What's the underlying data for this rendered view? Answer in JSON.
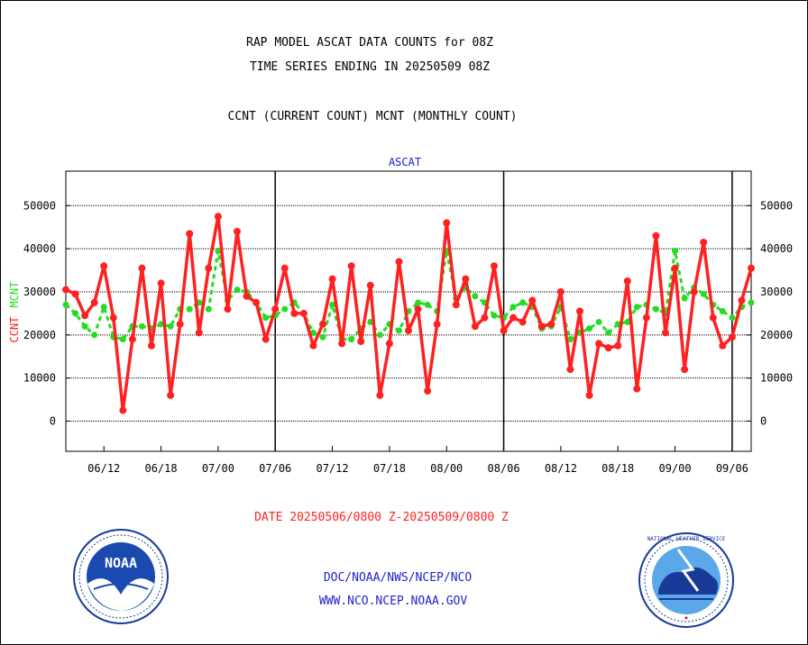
{
  "header": {
    "title_line1": "RAP MODEL ASCAT DATA COUNTS for 08Z",
    "title_line2": "TIME SERIES ENDING IN 20250509 08Z",
    "legend_line": "CCNT (CURRENT COUNT) MCNT (MONTHLY COUNT)"
  },
  "footer": {
    "date_range": "DATE 20250506/0800 Z-20250509/0800 Z",
    "org_line": "DOC/NOAA/NWS/NCEP/NCO",
    "url_line": "WWW.NCO.NCEP.NOAA.GOV"
  },
  "logos": {
    "noaa_text": "NOAA",
    "nws_text": "NATIONAL WEATHER SERVICE"
  },
  "colors": {
    "ccnt": "#ff2020",
    "mcnt": "#22dd22",
    "plot_title": "#1a1acc",
    "footer_blue": "#2222cc"
  },
  "chart_data": {
    "type": "line",
    "title": "ASCAT",
    "ylabel_left_a": "CCNT",
    "ylabel_left_b": "MCNT",
    "ylim": [
      -7000,
      58000
    ],
    "yticks": [
      0,
      10000,
      20000,
      30000,
      40000,
      50000
    ],
    "ytick_labels": [
      "0",
      "10000",
      "20000",
      "30000",
      "40000",
      "50000"
    ],
    "xlim": [
      0,
      72
    ],
    "xtick_positions": [
      4,
      10,
      16,
      22,
      28,
      34,
      40,
      46,
      52,
      58,
      64,
      70
    ],
    "xtick_labels": [
      "06/12",
      "06/18",
      "07/00",
      "07/06",
      "07/12",
      "07/18",
      "08/00",
      "08/06",
      "08/12",
      "08/18",
      "09/00",
      "09/06"
    ],
    "day_separators": [
      22,
      46,
      70
    ],
    "grid": true,
    "series": [
      {
        "name": "CCNT",
        "color": "#ff2020",
        "values": [
          30500,
          29500,
          24500,
          27500,
          36000,
          24000,
          2500,
          19000,
          35500,
          17500,
          32000,
          6000,
          22500,
          43500,
          20500,
          35500,
          47500,
          26000,
          44000,
          29000,
          27500,
          19000,
          26000,
          35500,
          25000,
          25000,
          17500,
          22500,
          33000,
          18000,
          36000,
          18500,
          31500,
          6000,
          18000,
          37000,
          21000,
          26000,
          7000,
          22500,
          46000,
          27000,
          33000,
          22000,
          24000,
          36000,
          21000,
          24000,
          23000,
          28000,
          22000,
          22500,
          30000,
          12000,
          25500,
          6000,
          18000,
          17000,
          17500,
          32500,
          7500,
          24000,
          43000,
          20500,
          35500,
          12000,
          30000,
          41500,
          24000,
          17500,
          19500,
          28000,
          35500
        ]
      },
      {
        "name": "MCNT",
        "color": "#22dd22",
        "values": [
          27000,
          25000,
          22000,
          20000,
          26500,
          19500,
          19000,
          22000,
          22000,
          21500,
          22500,
          22000,
          26000,
          26000,
          27500,
          26000,
          39500,
          28000,
          30500,
          30000,
          27500,
          24000,
          24500,
          26000,
          27500,
          25000,
          20500,
          19500,
          27000,
          19000,
          19000,
          21500,
          23000,
          20000,
          22500,
          21000,
          25500,
          27500,
          27000,
          25500,
          39500,
          28500,
          31000,
          29000,
          27500,
          24500,
          24000,
          26500,
          27500,
          26500,
          21500,
          22000,
          26500,
          19000,
          20500,
          21500,
          23000,
          20500,
          22500,
          23000,
          26500,
          27000,
          26000,
          25000,
          39500,
          28500,
          31000,
          29500,
          27000,
          25500,
          24000,
          26500,
          27500
        ]
      }
    ]
  }
}
